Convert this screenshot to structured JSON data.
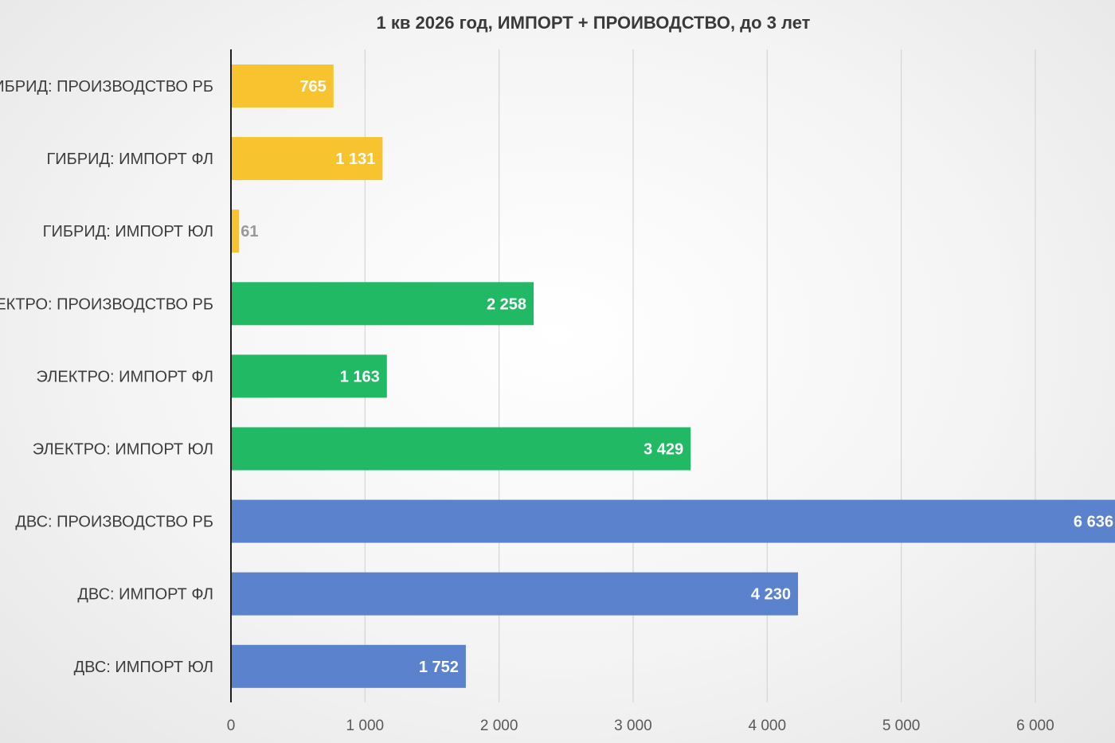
{
  "chart_data": {
    "type": "bar",
    "orientation": "horizontal",
    "title": "1 кв 2026 год, ИМПОРТ + ПРОИВОДСТВО, до 3 лет",
    "xlabel": "",
    "ylabel": "",
    "xlim": [
      0,
      6600
    ],
    "grid": true,
    "legend": "none",
    "x_ticks": [
      0,
      1000,
      2000,
      3000,
      4000,
      5000,
      6000
    ],
    "x_tick_labels": [
      "0",
      "1 000",
      "2 000",
      "3 000",
      "4 000",
      "5 000",
      "6 000"
    ],
    "categories": [
      "ГИБРИД: ПРОИЗВОДСТВО РБ",
      "ГИБРИД: ИМПОРТ ФЛ",
      "ГИБРИД: ИМПОРТ ЮЛ",
      "ЭЛЕКТРО: ПРОИЗВОДСТВО РБ",
      "ЭЛЕКТРО: ИМПОРТ ФЛ",
      "ЭЛЕКТРО: ИМПОРТ ЮЛ",
      "ДВС: ПРОИЗВОДСТВО РБ",
      "ДВС: ИМПОРТ ФЛ",
      "ДВС: ИМПОРТ ЮЛ"
    ],
    "values": [
      765,
      1131,
      61,
      2258,
      1163,
      3429,
      6636,
      4230,
      1752
    ],
    "value_labels": [
      "765",
      "1 131",
      "61",
      "2 258",
      "1 163",
      "3 429",
      "6 636",
      "4 230",
      "1 752"
    ],
    "bar_colors": [
      "#f7c32e",
      "#f7c32e",
      "#f7c32e",
      "#22b965",
      "#22b965",
      "#22b965",
      "#5b82cc",
      "#5b82cc",
      "#5b82cc"
    ],
    "value_label_colors": [
      "#ffffff",
      "#ffffff",
      "#9a9a9a",
      "#ffffff",
      "#ffffff",
      "#ffffff",
      "#ffffff",
      "#ffffff",
      "#ffffff"
    ]
  }
}
